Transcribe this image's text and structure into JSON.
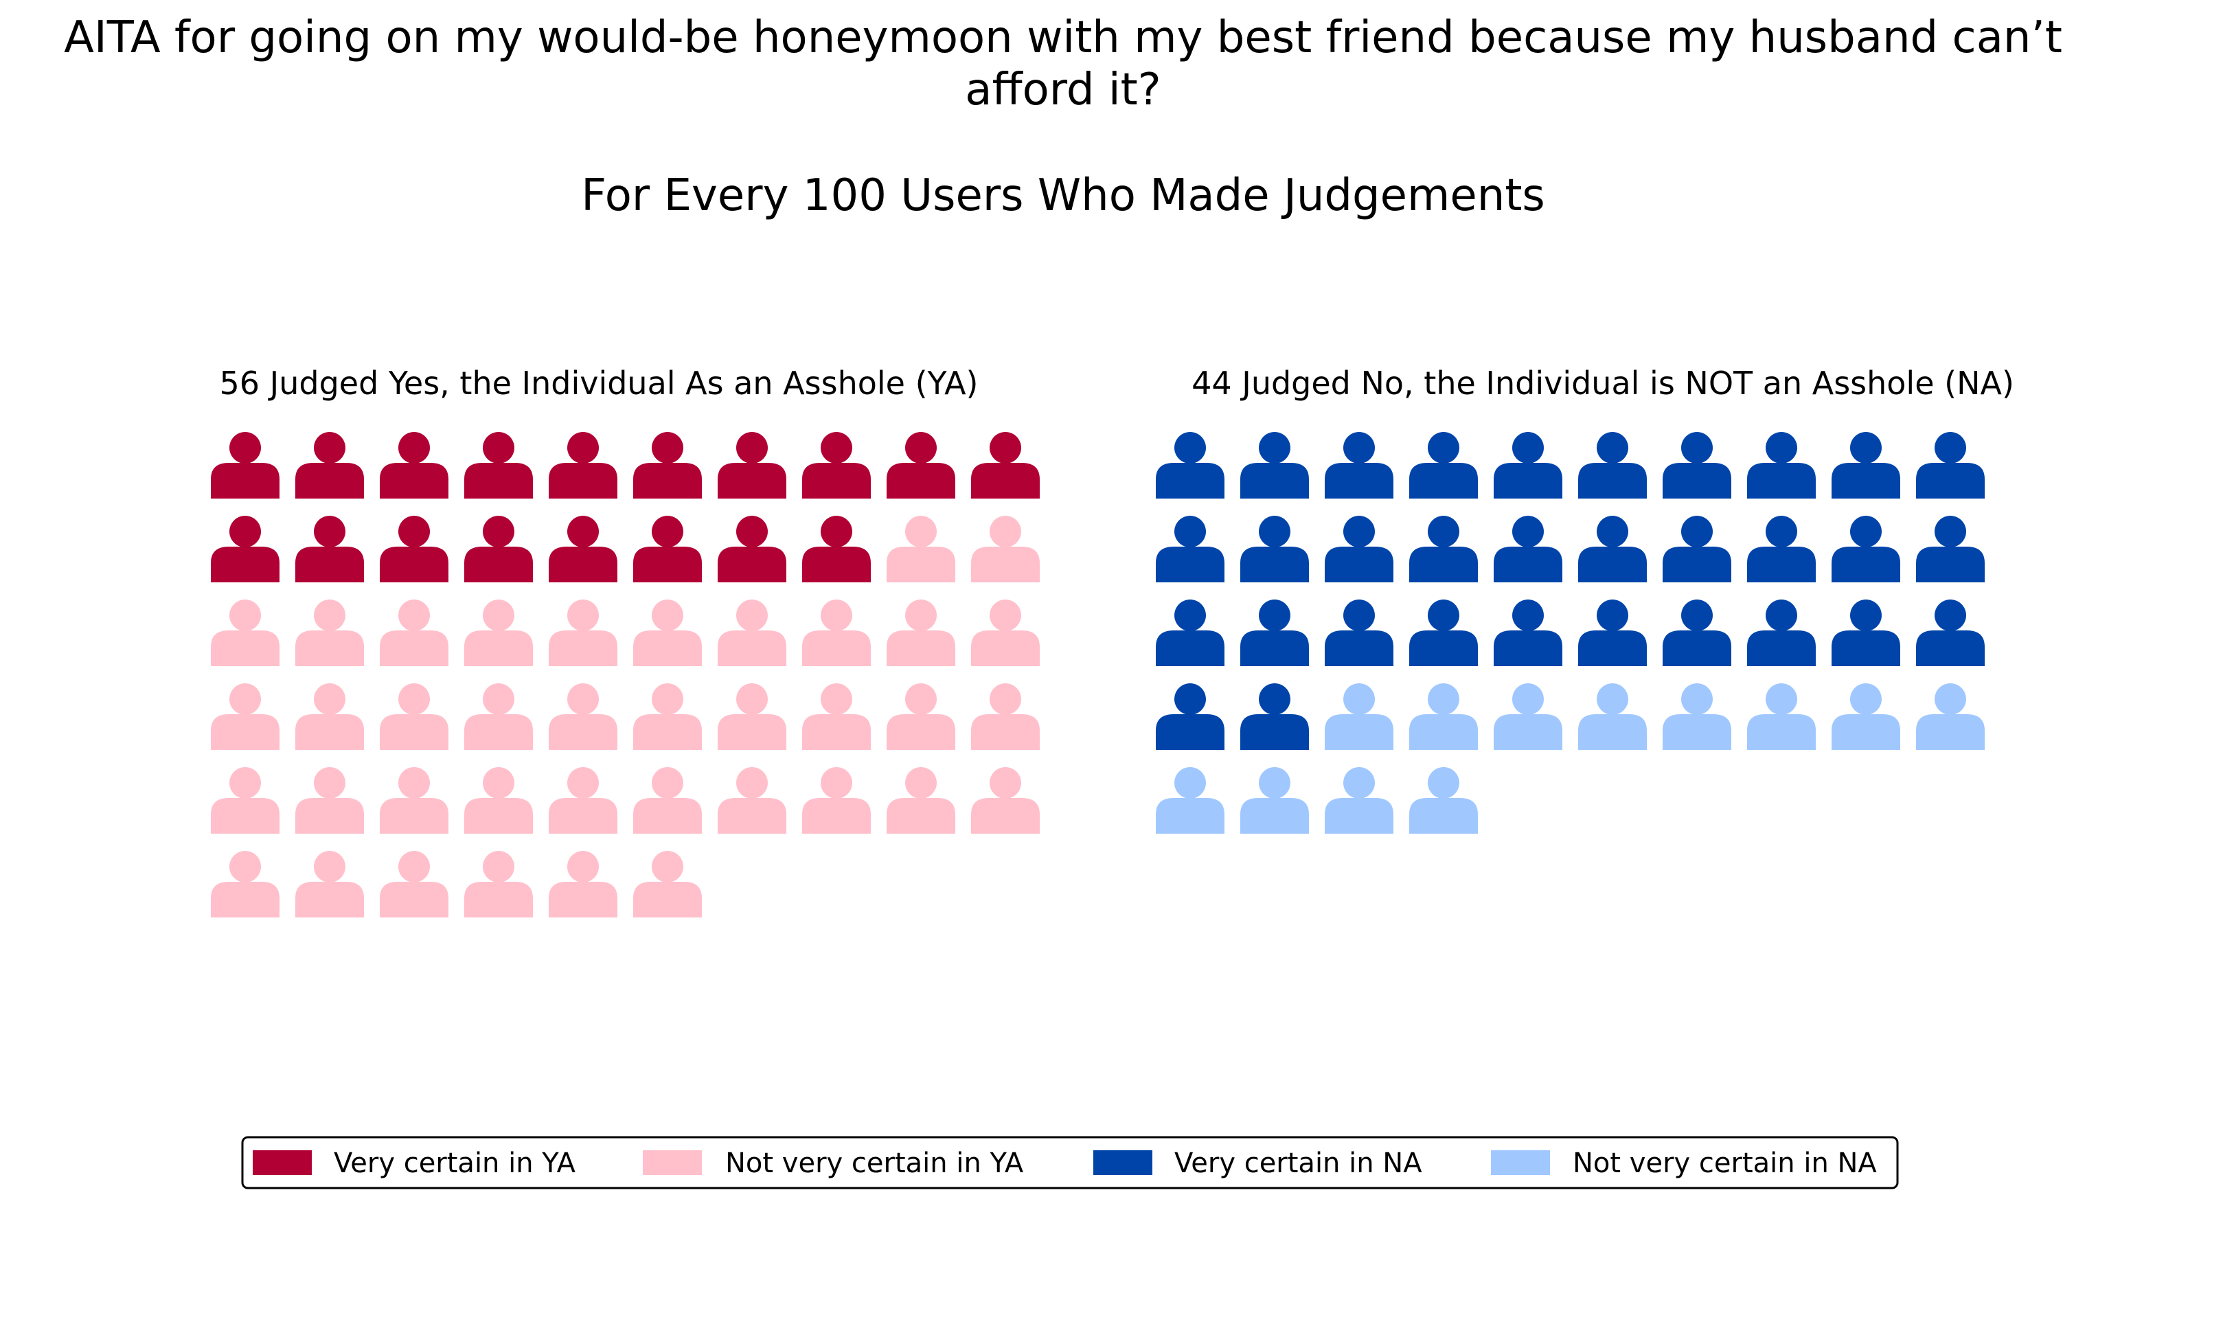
{
  "chart_data": {
    "type": "waffle",
    "title_lines": [
      "AITA for going on my would-be honeymoon with my best friend because my husband can’t",
      "afford it?"
    ],
    "subtitle": "For Every 100 Users Who Made Judgements",
    "panels": [
      {
        "label": "56 Judged Yes, the Individual As an Asshole (YA)",
        "total": 56,
        "segments": [
          {
            "name": "Very certain in YA",
            "count": 18,
            "color": "#b10034"
          },
          {
            "name": "Not very certain in YA",
            "count": 38,
            "color": "#ffc0cb"
          }
        ]
      },
      {
        "label": "44 Judged No, the Individual is NOT an Asshole (NA)",
        "total": 44,
        "segments": [
          {
            "name": "Very certain in NA",
            "count": 32,
            "color": "#0044aa"
          },
          {
            "name": "Not very certain in NA",
            "count": 12,
            "color": "#a0c8ff"
          }
        ]
      }
    ],
    "icon": "person-icon",
    "columns": 10,
    "legend": {
      "placement": "bottom",
      "entries": [
        {
          "label": "Very certain in YA",
          "color": "#b10034"
        },
        {
          "label": "Not very certain in YA",
          "color": "#ffc0cb"
        },
        {
          "label": "Very certain in NA",
          "color": "#0044aa"
        },
        {
          "label": "Not very certain in NA",
          "color": "#a0c8ff"
        }
      ]
    }
  }
}
